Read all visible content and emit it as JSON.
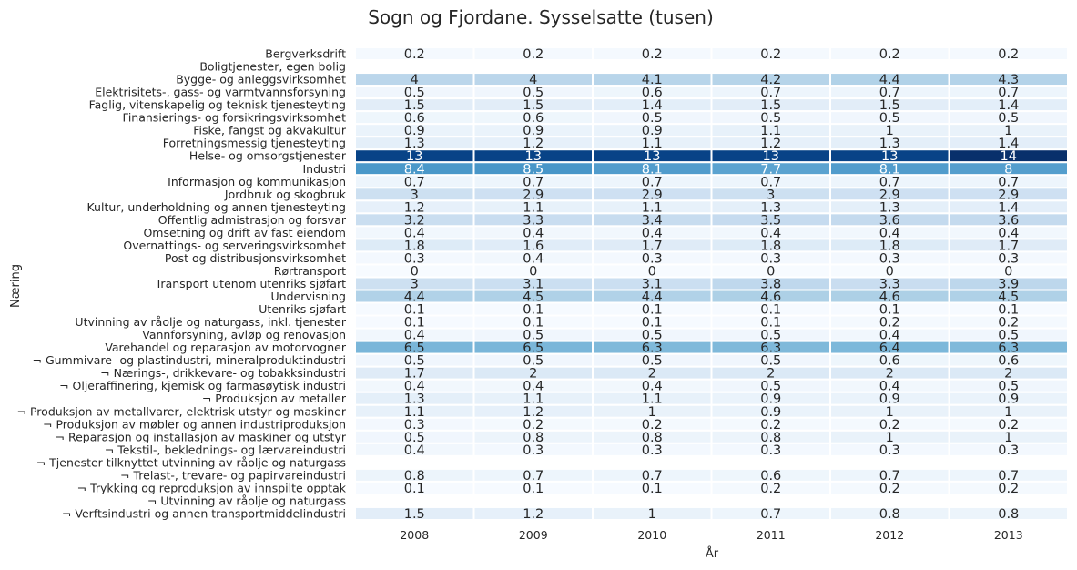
{
  "chart_data": {
    "type": "heatmap",
    "title": "Sogn og Fjordane. Sysselsatte (tusen)",
    "xlabel": "År",
    "ylabel": "Næring",
    "colormap": "Blues",
    "value_range": [
      0,
      14
    ],
    "columns": [
      "2008",
      "2009",
      "2010",
      "2011",
      "2012",
      "2013"
    ],
    "rows": [
      {
        "label": "Bergverksdrift",
        "values": [
          0.2,
          0.2,
          0.2,
          0.2,
          0.2,
          0.2
        ]
      },
      {
        "label": "Boligtjenester, egen bolig",
        "values": [
          null,
          null,
          null,
          null,
          null,
          null
        ]
      },
      {
        "label": "Bygge- og anleggsvirksomhet",
        "values": [
          4,
          4,
          4.1,
          4.2,
          4.4,
          4.3
        ]
      },
      {
        "label": "Elektrisitets-, gass- og varmtvannsforsyning",
        "values": [
          0.5,
          0.5,
          0.6,
          0.7,
          0.7,
          0.7
        ]
      },
      {
        "label": "Faglig, vitenskapelig og teknisk tjenesteyting",
        "values": [
          1.5,
          1.5,
          1.4,
          1.5,
          1.5,
          1.4
        ]
      },
      {
        "label": "Finansierings- og forsikringsvirksomhet",
        "values": [
          0.6,
          0.6,
          0.5,
          0.5,
          0.5,
          0.5
        ]
      },
      {
        "label": "Fiske, fangst og akvakultur",
        "values": [
          0.9,
          0.9,
          0.9,
          1.1,
          1,
          1
        ]
      },
      {
        "label": "Forretningsmessig tjenesteyting",
        "values": [
          1.3,
          1.2,
          1.1,
          1.2,
          1.3,
          1.4
        ]
      },
      {
        "label": "Helse- og omsorgstjenester",
        "values": [
          13,
          13,
          13,
          13,
          13,
          14
        ]
      },
      {
        "label": "Industri",
        "values": [
          8.4,
          8.5,
          8.1,
          7.7,
          8.1,
          8
        ]
      },
      {
        "label": "Informasjon og kommunikasjon",
        "values": [
          0.7,
          0.7,
          0.7,
          0.7,
          0.7,
          0.7
        ]
      },
      {
        "label": "Jordbruk og skogbruk",
        "values": [
          3,
          2.9,
          2.9,
          3,
          2.9,
          2.9
        ]
      },
      {
        "label": "Kultur, underholdning og annen tjenesteyting",
        "values": [
          1.2,
          1.1,
          1.1,
          1.3,
          1.3,
          1.4
        ]
      },
      {
        "label": "Offentlig admistrasjon og forsvar",
        "values": [
          3.2,
          3.3,
          3.4,
          3.5,
          3.6,
          3.6
        ]
      },
      {
        "label": "Omsetning og drift av fast eiendom",
        "values": [
          0.4,
          0.4,
          0.4,
          0.4,
          0.4,
          0.4
        ]
      },
      {
        "label": "Overnattings- og serveringsvirksomhet",
        "values": [
          1.8,
          1.6,
          1.7,
          1.8,
          1.8,
          1.7
        ]
      },
      {
        "label": "Post og distribusjonsvirksomhet",
        "values": [
          0.3,
          0.4,
          0.3,
          0.3,
          0.3,
          0.3
        ]
      },
      {
        "label": "Rørtransport",
        "values": [
          0,
          0,
          0,
          0,
          0,
          0
        ]
      },
      {
        "label": "Transport utenom utenriks sjøfart",
        "values": [
          3,
          3.1,
          3.1,
          3.8,
          3.3,
          3.9
        ]
      },
      {
        "label": "Undervisning",
        "values": [
          4.4,
          4.5,
          4.4,
          4.6,
          4.6,
          4.5
        ]
      },
      {
        "label": "Utenriks sjøfart",
        "values": [
          0.1,
          0.1,
          0.1,
          0.1,
          0.1,
          0.1
        ]
      },
      {
        "label": "Utvinning av råolje og naturgass, inkl. tjenester",
        "values": [
          0.1,
          0.1,
          0.1,
          0.1,
          0.2,
          0.2
        ]
      },
      {
        "label": "Vannforsyning, avløp og renovasjon",
        "values": [
          0.4,
          0.5,
          0.5,
          0.5,
          0.4,
          0.5
        ]
      },
      {
        "label": "Varehandel og reparasjon av motorvogner",
        "values": [
          6.5,
          6.5,
          6.3,
          6.3,
          6.4,
          6.3
        ]
      },
      {
        "label": "¬ Gummivare- og plastindustri, mineralproduktindustri",
        "values": [
          0.5,
          0.5,
          0.5,
          0.5,
          0.6,
          0.6
        ]
      },
      {
        "label": "¬ Nærings-, drikkevare- og tobakksindustri",
        "values": [
          1.7,
          2,
          2,
          2,
          2,
          2
        ]
      },
      {
        "label": "¬ Oljeraffinering, kjemisk og farmasøytisk industri",
        "values": [
          0.4,
          0.4,
          0.4,
          0.5,
          0.4,
          0.5
        ]
      },
      {
        "label": "¬ Produksjon av metaller",
        "values": [
          1.3,
          1.1,
          1.1,
          0.9,
          0.9,
          0.9
        ]
      },
      {
        "label": "¬ Produksjon av metallvarer, elektrisk utstyr og maskiner",
        "values": [
          1.1,
          1.2,
          1,
          0.9,
          1,
          1
        ]
      },
      {
        "label": "¬ Produksjon av møbler og annen industriproduksjon",
        "values": [
          0.3,
          0.2,
          0.2,
          0.2,
          0.2,
          0.2
        ]
      },
      {
        "label": "¬ Reparasjon og installasjon av maskiner og utstyr",
        "values": [
          0.5,
          0.8,
          0.8,
          0.8,
          1,
          1
        ]
      },
      {
        "label": "¬ Tekstil-, beklednings- og lærvareindustri",
        "values": [
          0.4,
          0.3,
          0.3,
          0.3,
          0.3,
          0.3
        ]
      },
      {
        "label": "¬ Tjenester tilknyttet utvinning av råolje og naturgass",
        "values": [
          null,
          null,
          null,
          null,
          null,
          null
        ]
      },
      {
        "label": "¬ Trelast-, trevare- og papirvareindustri",
        "values": [
          0.8,
          0.7,
          0.7,
          0.6,
          0.7,
          0.7
        ]
      },
      {
        "label": "¬ Trykking og reproduksjon av innspilte opptak",
        "values": [
          0.1,
          0.1,
          0.1,
          0.2,
          0.2,
          0.2
        ]
      },
      {
        "label": "¬ Utvinning av råolje og naturgass",
        "values": [
          null,
          null,
          null,
          null,
          null,
          null
        ]
      },
      {
        "label": "¬ Verftsindustri og annen transportmiddelindustri",
        "values": [
          1.5,
          1.2,
          1,
          0.7,
          0.8,
          0.8
        ]
      }
    ]
  }
}
